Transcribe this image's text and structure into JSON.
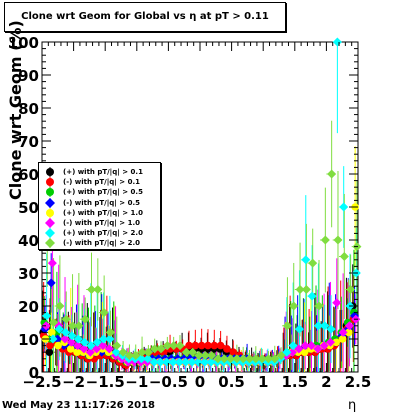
{
  "footer": "Wed May 23 11:17:26 2018",
  "chart_data": {
    "type": "scatter",
    "title": "Clone wrt Geom for Global vs   η at pT > 0.11",
    "xlabel": "η",
    "ylabel": "Clone wrt Geom (%)",
    "xlim": [
      -2.5,
      2.5
    ],
    "ylim": [
      0,
      100
    ],
    "xticks": [
      "−2.5",
      "−2",
      "−1.5",
      "−1",
      "−0.5",
      "0",
      "0.5",
      "1",
      "1.5",
      "2",
      "2.5"
    ],
    "yticks": [
      "0",
      "10",
      "20",
      "30",
      "40",
      "50",
      "60",
      "70",
      "80",
      "90",
      "100"
    ],
    "grid": false,
    "legend_position": "left-middle",
    "x": [
      -2.45,
      -2.35,
      -2.25,
      -2.15,
      -2.05,
      -1.95,
      -1.85,
      -1.75,
      -1.65,
      -1.55,
      -1.45,
      -1.35,
      -1.25,
      -1.15,
      -1.05,
      -0.95,
      -0.85,
      -0.75,
      -0.65,
      -0.55,
      -0.45,
      -0.35,
      -0.25,
      -0.15,
      -0.05,
      0.05,
      0.15,
      0.25,
      0.35,
      0.45,
      0.55,
      0.65,
      0.75,
      0.85,
      0.95,
      1.05,
      1.15,
      1.25,
      1.35,
      1.45,
      1.55,
      1.65,
      1.75,
      1.85,
      1.95,
      2.05,
      2.15,
      2.25,
      2.35,
      2.45
    ],
    "series": [
      {
        "name": "(+) with pT/|q| > 0.1",
        "color": "#000000",
        "marker": "circle",
        "values": [
          12,
          6,
          9,
          8,
          7,
          6,
          5,
          4,
          5,
          6,
          5,
          4,
          3,
          2,
          3,
          3,
          4,
          5,
          6,
          6,
          6,
          7,
          7,
          7,
          7,
          7,
          7,
          7,
          7,
          6,
          6,
          5,
          4,
          3,
          3,
          3,
          3,
          4,
          5,
          5,
          5,
          6,
          6,
          6,
          7,
          7,
          8,
          10,
          14,
          20
        ]
      },
      {
        "name": "(-) with pT/|q| > 0.1",
        "color": "#ff0000",
        "marker": "circle",
        "values": [
          11,
          8,
          9,
          7,
          6,
          6,
          5,
          4,
          4,
          5,
          5,
          4,
          3,
          2,
          3,
          3,
          4,
          5,
          6,
          6,
          7,
          7,
          7,
          8,
          8,
          8,
          8,
          8,
          8,
          7,
          6,
          5,
          4,
          3,
          3,
          3,
          3,
          4,
          5,
          5,
          5,
          6,
          6,
          6,
          7,
          7,
          8,
          10,
          13,
          16
        ]
      },
      {
        "name": "(+) with pT/|q| > 0.5",
        "color": "#00cc00",
        "marker": "circle",
        "values": [
          15,
          10,
          12,
          9,
          8,
          7,
          6,
          5,
          6,
          7,
          6,
          5,
          4,
          3,
          3,
          3,
          3,
          4,
          4,
          4,
          4,
          4,
          4,
          4,
          4,
          4,
          4,
          4,
          4,
          4,
          4,
          4,
          4,
          3,
          3,
          3,
          3,
          4,
          5,
          6,
          6,
          7,
          7,
          8,
          8,
          9,
          10,
          12,
          15,
          18
        ]
      },
      {
        "name": "(-) with pT/|q| > 0.5",
        "color": "#0000ff",
        "marker": "diamond",
        "values": [
          13,
          27,
          10,
          8,
          8,
          7,
          6,
          5,
          6,
          6,
          6,
          5,
          4,
          3,
          3,
          3,
          3,
          4,
          4,
          4,
          4,
          4,
          4,
          4,
          4,
          4,
          4,
          4,
          4,
          4,
          4,
          4,
          4,
          3,
          3,
          3,
          3,
          4,
          5,
          6,
          6,
          7,
          7,
          7,
          8,
          8,
          9,
          11,
          13,
          17
        ]
      },
      {
        "name": "(+) with pT/|q| > 1.0",
        "color": "#ffff00",
        "marker": "circle",
        "values": [
          10,
          12,
          8,
          9,
          7,
          6,
          6,
          5,
          6,
          7,
          6,
          5,
          4,
          3,
          3,
          3,
          3,
          3,
          3,
          3,
          3,
          3,
          3,
          3,
          3,
          3,
          3,
          3,
          3,
          3,
          3,
          3,
          3,
          3,
          3,
          3,
          3,
          4,
          5,
          6,
          6,
          6,
          7,
          7,
          8,
          8,
          9,
          10,
          12,
          50
        ]
      },
      {
        "name": "(-) with pT/|q| > 1.0",
        "color": "#ff00ff",
        "marker": "diamond",
        "values": [
          14,
          33,
          14,
          10,
          9,
          8,
          7,
          6,
          7,
          8,
          7,
          5,
          4,
          3,
          3,
          3,
          3,
          3,
          3,
          3,
          3,
          3,
          3,
          3,
          3,
          3,
          3,
          3,
          3,
          3,
          3,
          3,
          3,
          3,
          3,
          3,
          3,
          4,
          5,
          6,
          7,
          8,
          8,
          7,
          8,
          9,
          21,
          12,
          14,
          16
        ]
      },
      {
        "name": "(+) with pT/|q| > 2.0",
        "color": "#00ffff",
        "marker": "diamond",
        "values": [
          17,
          10,
          13,
          12,
          11,
          10,
          9,
          8,
          9,
          10,
          10,
          6,
          5,
          4,
          4,
          4,
          4,
          3,
          3,
          3,
          3,
          3,
          3,
          3,
          3,
          3,
          3,
          3,
          3,
          3,
          3,
          3,
          3,
          3,
          3,
          3,
          3,
          4,
          6,
          8,
          13,
          34,
          23,
          14,
          14,
          13,
          100,
          50,
          20,
          30
        ]
      },
      {
        "name": "(-) with pT/|q| > 2.0",
        "color": "#80dd40",
        "marker": "diamond",
        "values": [
          40,
          15,
          20,
          16,
          14,
          14,
          16,
          25,
          25,
          18,
          12,
          8,
          6,
          5,
          5,
          6,
          6,
          7,
          7,
          8,
          8,
          8,
          6,
          6,
          5,
          5,
          5,
          4,
          4,
          4,
          4,
          4,
          4,
          4,
          4,
          4,
          4,
          5,
          14,
          20,
          25,
          25,
          33,
          20,
          40,
          60,
          40,
          35,
          25,
          38
        ]
      }
    ]
  }
}
